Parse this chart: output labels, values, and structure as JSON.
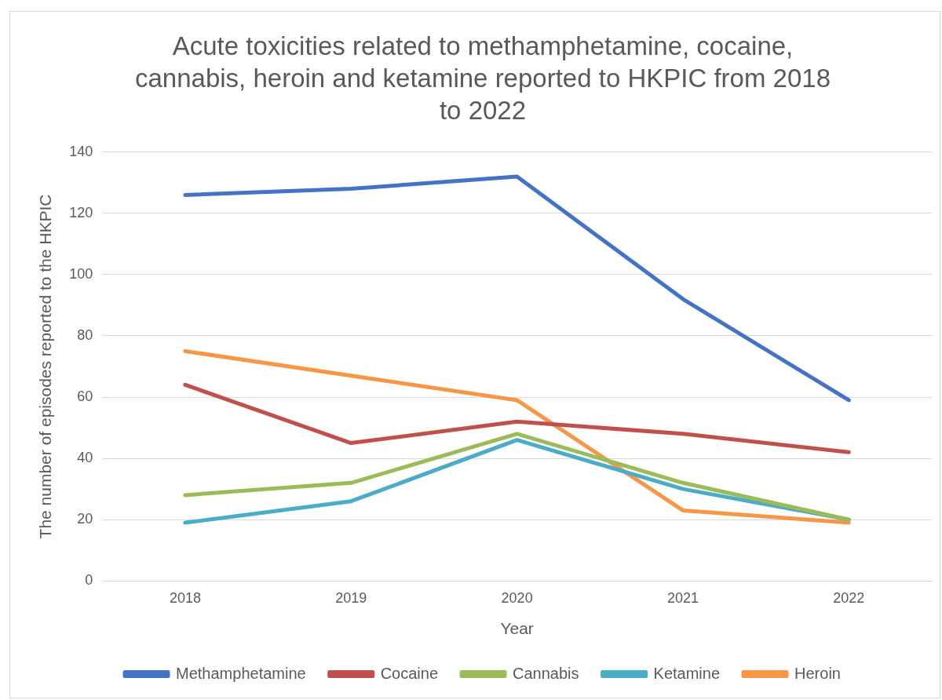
{
  "chart_data": {
    "type": "line",
    "title": "Acute toxicities related to methamphetamine, cocaine, cannabis, heroin and ketamine reported to HKPIC from 2018 to 2022",
    "xlabel": "Year",
    "ylabel": "The number of episodes reported to the HKPIC",
    "categories": [
      "2018",
      "2019",
      "2020",
      "2021",
      "2022"
    ],
    "series": [
      {
        "name": "Methamphetamine",
        "color": "#4472c4",
        "values": [
          126,
          128,
          132,
          92,
          59
        ]
      },
      {
        "name": "Cocaine",
        "color": "#c0504d",
        "values": [
          64,
          45,
          52,
          48,
          42
        ]
      },
      {
        "name": "Cannabis",
        "color": "#9bbb59",
        "values": [
          28,
          32,
          48,
          32,
          20
        ]
      },
      {
        "name": "Ketamine",
        "color": "#4bacc6",
        "values": [
          19,
          26,
          46,
          30,
          20
        ]
      },
      {
        "name": "Heroin",
        "color": "#f79646",
        "values": [
          75,
          67,
          59,
          23,
          19
        ]
      }
    ],
    "ylim": [
      0,
      140
    ],
    "yticks": [
      0,
      20,
      40,
      60,
      80,
      100,
      120,
      140
    ],
    "grid": "y",
    "legend": "bottom",
    "marker": "none",
    "line_style": "solid"
  }
}
